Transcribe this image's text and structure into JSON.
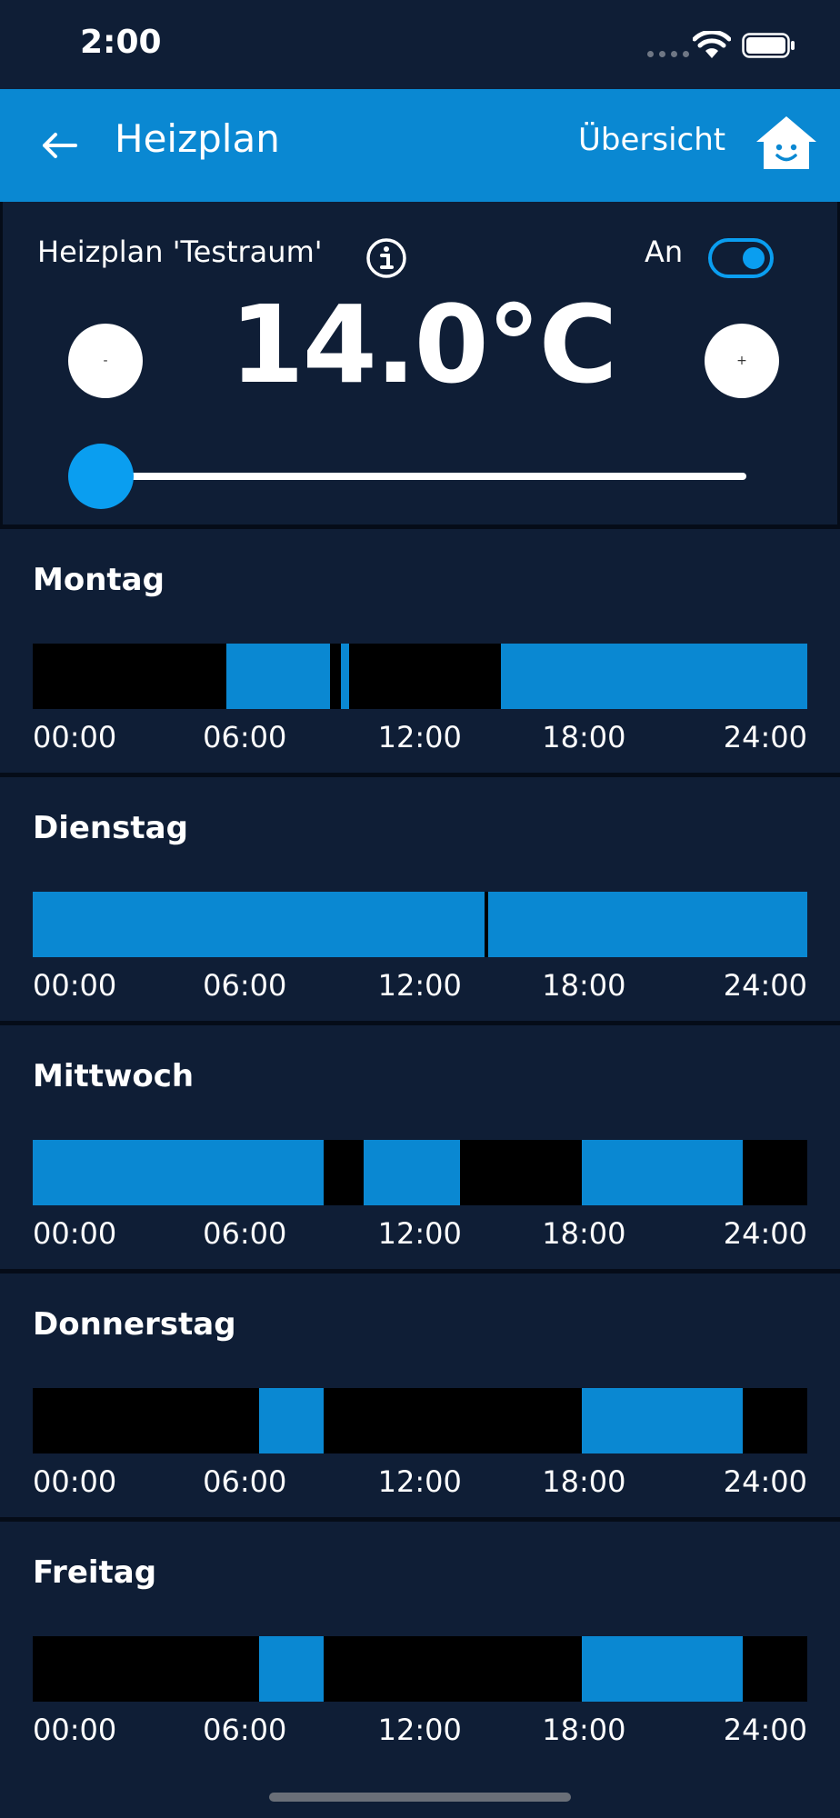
{
  "status_bar": {
    "time": "2:00",
    "icons": [
      "signal-icon",
      "wifi-icon",
      "battery-icon"
    ]
  },
  "header": {
    "title": "Heizplan",
    "back_icon": "back-arrow-icon",
    "overview_label": "Übersicht",
    "home_icon": "smiling-house-icon",
    "background_color": "#0a88d2"
  },
  "control": {
    "plan_label": "Heizplan 'Testraum'",
    "info_icon": "info-icon",
    "toggle_label": "An",
    "toggle_on": true,
    "temperature": "14.0°C",
    "minus_label": "-",
    "plus_label": "+",
    "slider_fraction": 0.0
  },
  "time_axis": [
    "00:00",
    "06:00",
    "12:00",
    "18:00",
    "24:00"
  ],
  "days": [
    {
      "name": "Montag",
      "heating_periods": [
        [
          6.0,
          9.2
        ],
        [
          9.55,
          9.8
        ],
        [
          14.5,
          24.0
        ]
      ]
    },
    {
      "name": "Dienstag",
      "heating_periods": [
        [
          0.0,
          14.0
        ],
        [
          14.1,
          24.0
        ]
      ]
    },
    {
      "name": "Mittwoch",
      "heating_periods": [
        [
          0.0,
          9.0
        ],
        [
          10.25,
          13.25
        ],
        [
          17.0,
          22.0
        ]
      ]
    },
    {
      "name": "Donnerstag",
      "heating_periods": [
        [
          7.0,
          9.0
        ],
        [
          17.0,
          22.0
        ]
      ]
    },
    {
      "name": "Freitag",
      "heating_periods": [
        [
          7.0,
          9.0
        ],
        [
          17.0,
          22.0
        ]
      ]
    }
  ],
  "colors": {
    "background": "#0f1e36",
    "accent": "#0a88d2",
    "slider_accent": "#0a9ef0",
    "off_period": "#000000"
  }
}
